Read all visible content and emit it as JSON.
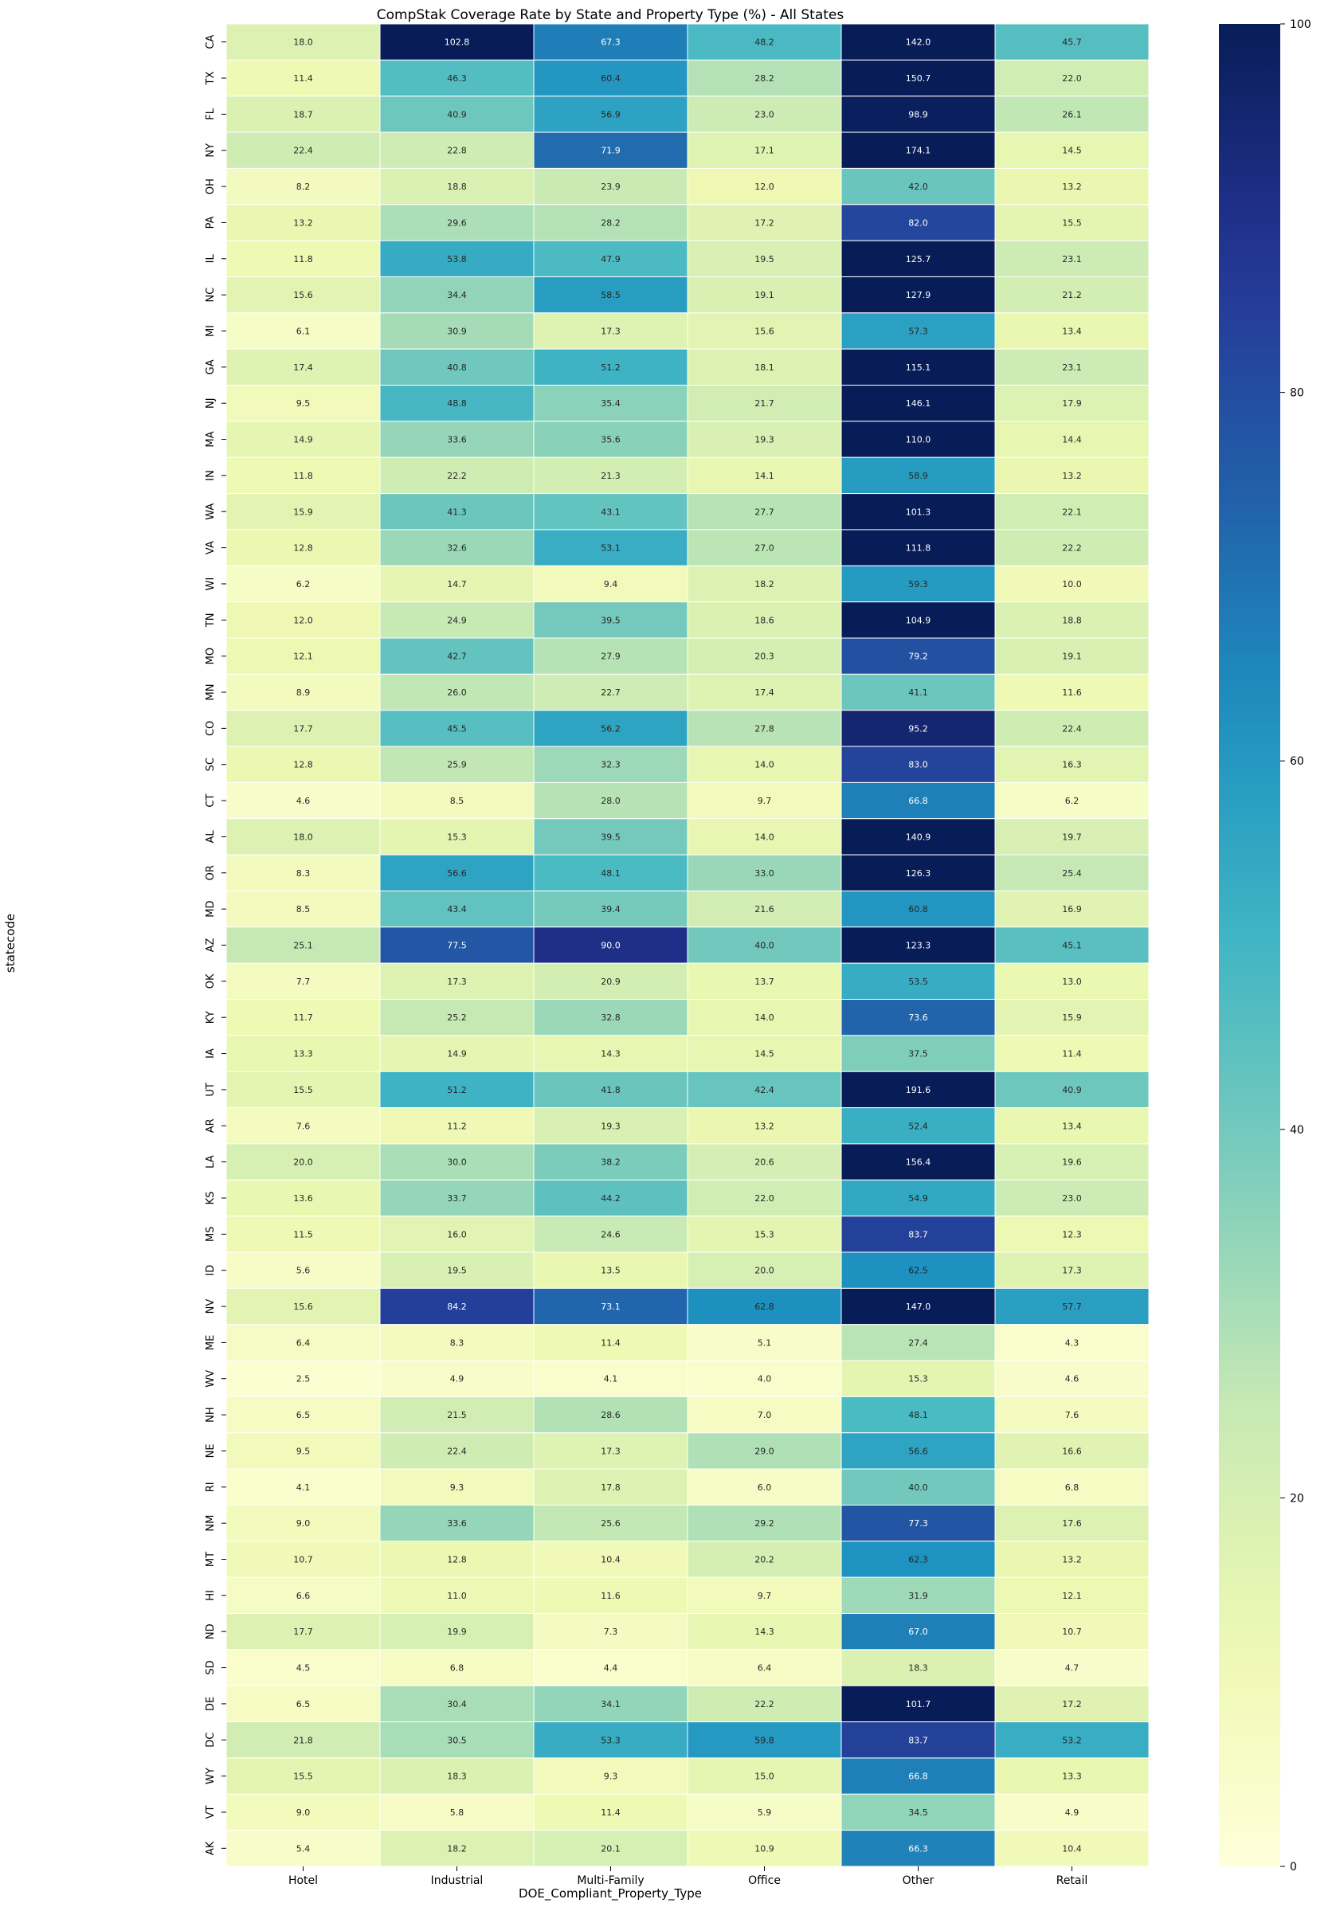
{
  "chart_data": {
    "type": "heatmap",
    "title": "CompStak Coverage Rate by State and Property Type (%) - All States",
    "xlabel": "DOE_Compliant_Property_Type",
    "ylabel": "statecode",
    "colormap": "YlGnBu",
    "value_range": [
      0,
      100
    ],
    "colorbar_ticks": [
      0,
      20,
      40,
      60,
      80,
      100
    ],
    "columns": [
      "Hotel",
      "Industrial",
      "Multi-Family",
      "Office",
      "Other",
      "Retail"
    ],
    "rows": [
      "CA",
      "TX",
      "FL",
      "NY",
      "OH",
      "PA",
      "IL",
      "NC",
      "MI",
      "GA",
      "NJ",
      "MA",
      "IN",
      "WA",
      "VA",
      "WI",
      "TN",
      "MO",
      "MN",
      "CO",
      "SC",
      "CT",
      "AL",
      "OR",
      "MD",
      "AZ",
      "OK",
      "KY",
      "IA",
      "UT",
      "AR",
      "LA",
      "KS",
      "MS",
      "ID",
      "NV",
      "ME",
      "WV",
      "NH",
      "NE",
      "RI",
      "NM",
      "MT",
      "HI",
      "ND",
      "SD",
      "DE",
      "DC",
      "WY",
      "VT",
      "AK"
    ],
    "values": [
      [
        18.0,
        102.8,
        67.3,
        48.2,
        142.0,
        45.7
      ],
      [
        11.4,
        46.3,
        60.4,
        28.2,
        150.7,
        22.0
      ],
      [
        18.7,
        40.9,
        56.9,
        23.0,
        98.9,
        26.1
      ],
      [
        22.4,
        22.8,
        71.9,
        17.1,
        174.1,
        14.5
      ],
      [
        8.2,
        18.8,
        23.9,
        12.0,
        42.0,
        13.2
      ],
      [
        13.2,
        29.6,
        28.2,
        17.2,
        82.0,
        15.5
      ],
      [
        11.8,
        53.8,
        47.9,
        19.5,
        125.7,
        23.1
      ],
      [
        15.6,
        34.4,
        58.5,
        19.1,
        127.9,
        21.2
      ],
      [
        6.1,
        30.9,
        17.3,
        15.6,
        57.3,
        13.4
      ],
      [
        17.4,
        40.8,
        51.2,
        18.1,
        115.1,
        23.1
      ],
      [
        9.5,
        48.8,
        35.4,
        21.7,
        146.1,
        17.9
      ],
      [
        14.9,
        33.6,
        35.6,
        19.3,
        110.0,
        14.4
      ],
      [
        11.8,
        22.2,
        21.3,
        14.1,
        58.9,
        13.2
      ],
      [
        15.9,
        41.3,
        43.1,
        27.7,
        101.3,
        22.1
      ],
      [
        12.8,
        32.6,
        53.1,
        27.0,
        111.8,
        22.2
      ],
      [
        6.2,
        14.7,
        9.4,
        18.2,
        59.3,
        10.0
      ],
      [
        12.0,
        24.9,
        39.5,
        18.6,
        104.9,
        18.8
      ],
      [
        12.1,
        42.7,
        27.9,
        20.3,
        79.2,
        19.1
      ],
      [
        8.9,
        26.0,
        22.7,
        17.4,
        41.1,
        11.6
      ],
      [
        17.7,
        45.5,
        56.2,
        27.8,
        95.2,
        22.4
      ],
      [
        12.8,
        25.9,
        32.3,
        14.0,
        83.0,
        16.3
      ],
      [
        4.6,
        8.5,
        28.0,
        9.7,
        66.8,
        6.2
      ],
      [
        18.0,
        15.3,
        39.5,
        14.0,
        140.9,
        19.7
      ],
      [
        8.3,
        56.6,
        48.1,
        33.0,
        126.3,
        25.4
      ],
      [
        8.5,
        43.4,
        39.4,
        21.6,
        60.8,
        16.9
      ],
      [
        25.1,
        77.5,
        90.0,
        40.0,
        123.3,
        45.1
      ],
      [
        7.7,
        17.3,
        20.9,
        13.7,
        53.5,
        13.0
      ],
      [
        11.7,
        25.2,
        32.8,
        14.0,
        73.6,
        15.9
      ],
      [
        13.3,
        14.9,
        14.3,
        14.5,
        37.5,
        11.4
      ],
      [
        15.5,
        51.2,
        41.8,
        42.4,
        191.6,
        40.9
      ],
      [
        7.6,
        11.2,
        19.3,
        13.2,
        52.4,
        13.4
      ],
      [
        20.0,
        30.0,
        38.2,
        20.6,
        156.4,
        19.6
      ],
      [
        13.6,
        33.7,
        44.2,
        22.0,
        54.9,
        23.0
      ],
      [
        11.5,
        16.0,
        24.6,
        15.3,
        83.7,
        12.3
      ],
      [
        5.6,
        19.5,
        13.5,
        20.0,
        62.5,
        17.3
      ],
      [
        15.6,
        84.2,
        73.1,
        62.8,
        147.0,
        57.7
      ],
      [
        6.4,
        8.3,
        11.4,
        5.1,
        27.4,
        4.3
      ],
      [
        2.5,
        4.9,
        4.1,
        4.0,
        15.3,
        4.6
      ],
      [
        6.5,
        21.5,
        28.6,
        7.0,
        48.1,
        7.6
      ],
      [
        9.5,
        22.4,
        17.3,
        29.0,
        56.6,
        16.6
      ],
      [
        4.1,
        9.3,
        17.8,
        6.0,
        40.0,
        6.8
      ],
      [
        9.0,
        33.6,
        25.6,
        29.2,
        77.3,
        17.6
      ],
      [
        10.7,
        12.8,
        10.4,
        20.2,
        62.3,
        13.2
      ],
      [
        6.6,
        11.0,
        11.6,
        9.7,
        31.9,
        12.1
      ],
      [
        17.7,
        19.9,
        7.3,
        14.3,
        67.0,
        10.7
      ],
      [
        4.5,
        6.8,
        4.4,
        6.4,
        18.3,
        4.7
      ],
      [
        6.5,
        30.4,
        34.1,
        22.2,
        101.7,
        17.2
      ],
      [
        21.8,
        30.5,
        53.3,
        59.8,
        83.7,
        53.2
      ],
      [
        15.5,
        18.3,
        9.3,
        15.0,
        66.8,
        13.3
      ],
      [
        9.0,
        5.8,
        11.4,
        5.9,
        34.5,
        4.9
      ],
      [
        5.4,
        18.2,
        20.1,
        10.9,
        66.3,
        10.4
      ]
    ]
  }
}
